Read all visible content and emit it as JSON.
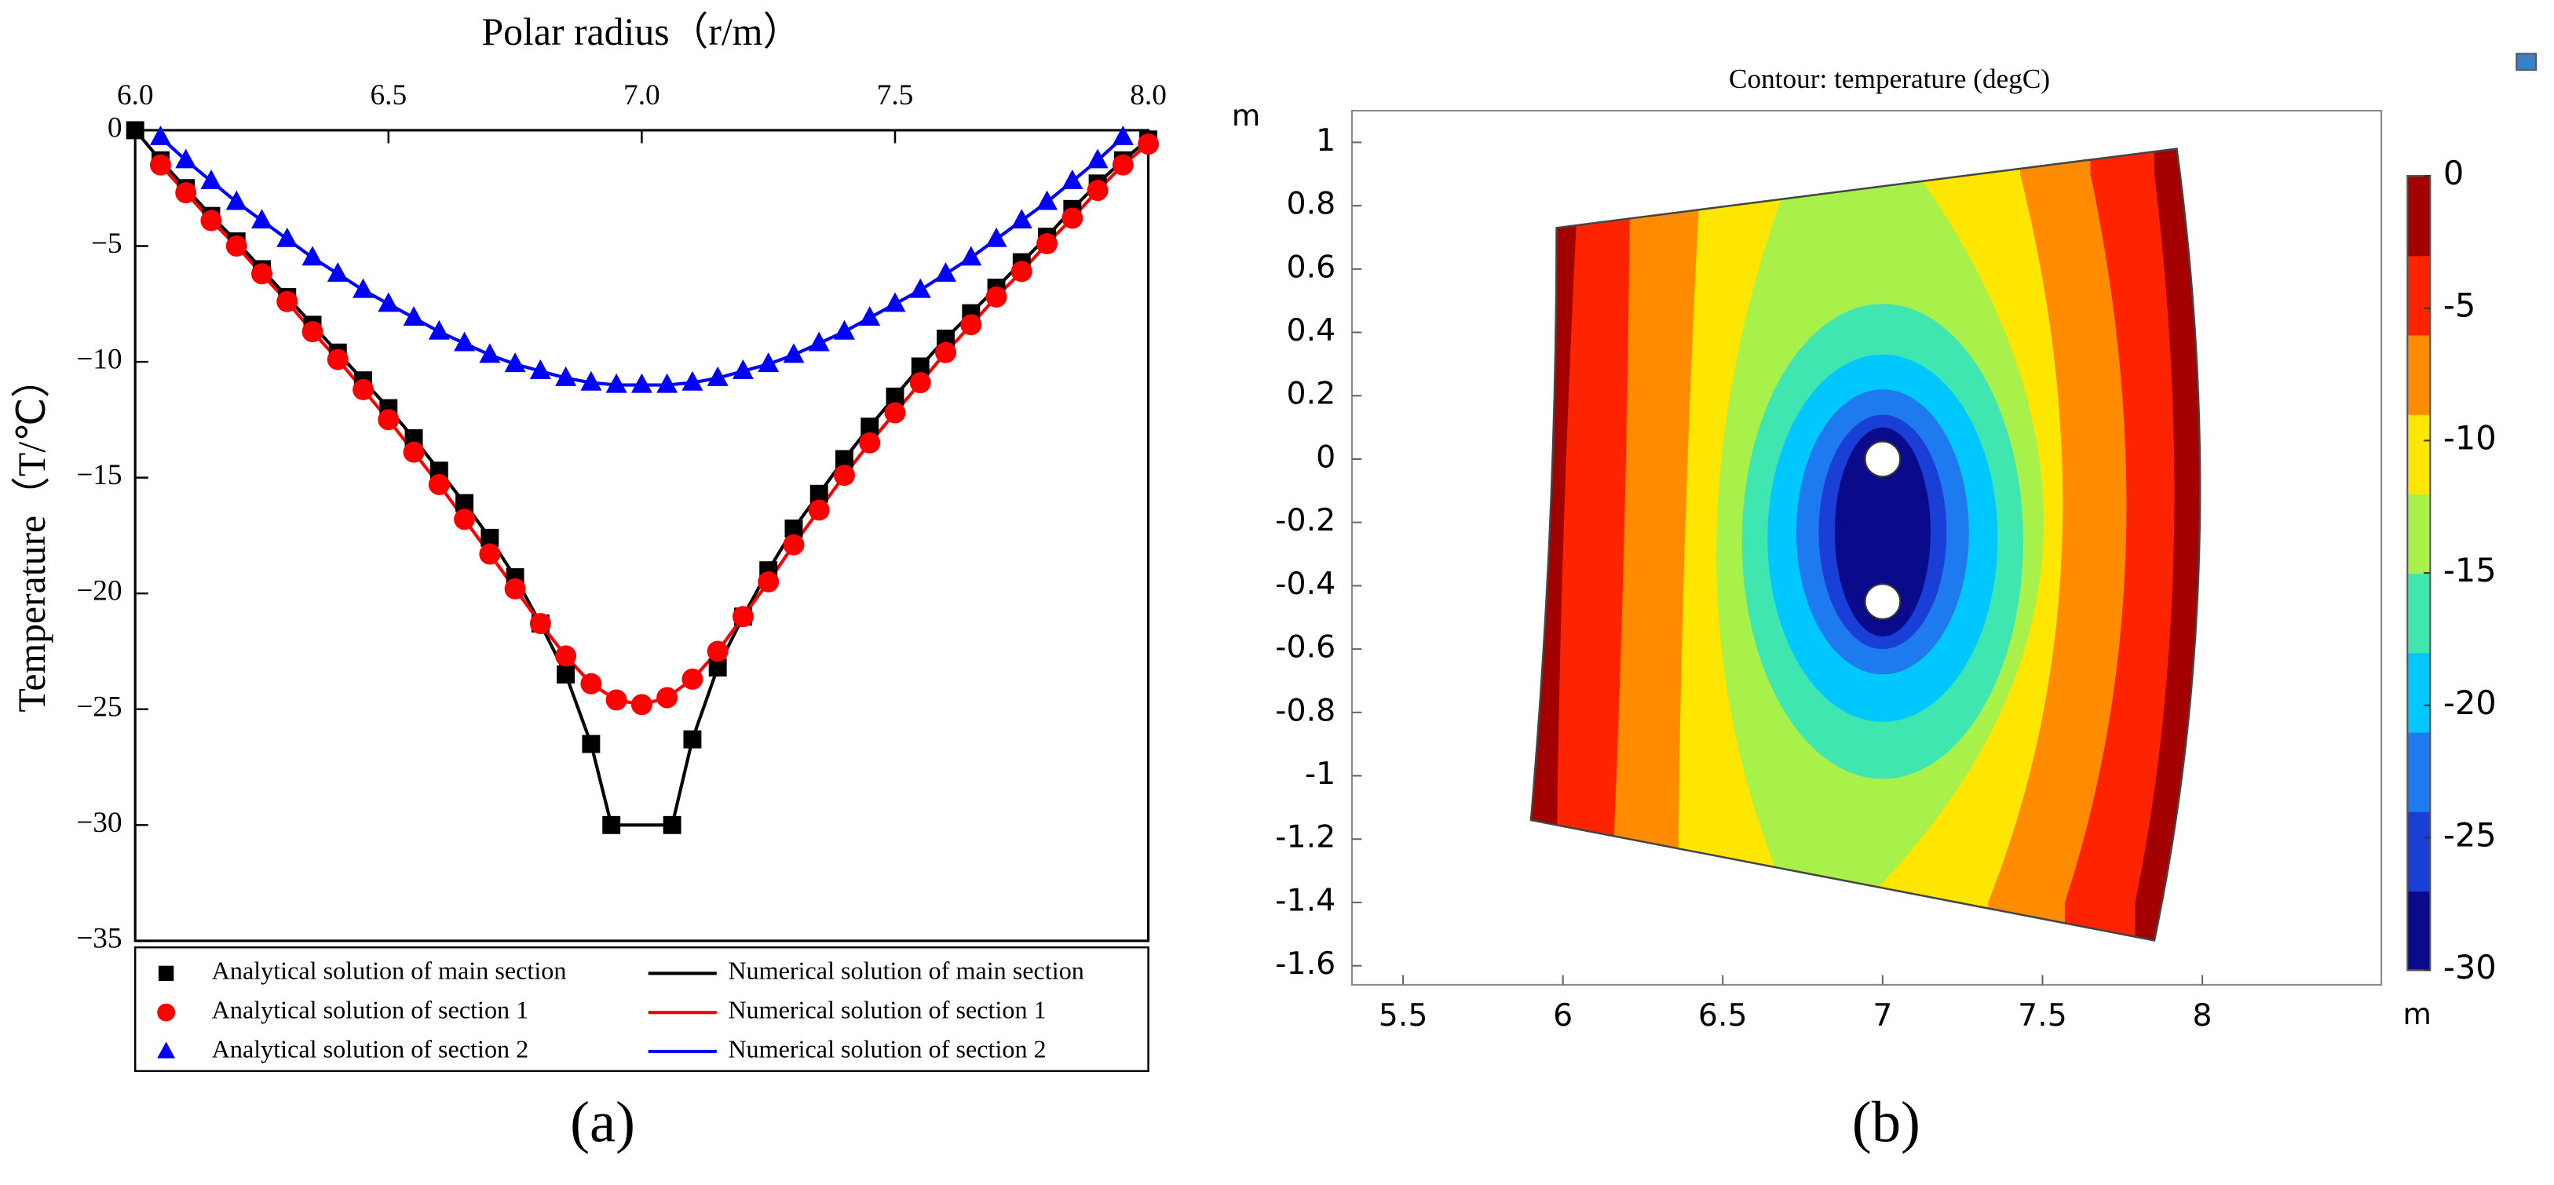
{
  "chart_data": [
    {
      "type": "line",
      "xlabel": "Polar radius（r/m）",
      "ylabel": "Temperature（T/℃）",
      "caption": "(a)",
      "xlim": [
        6,
        8
      ],
      "ylim": [
        -35,
        0
      ],
      "xticks": [
        {
          "value": 6,
          "label": "6.0"
        },
        {
          "value": 6.5,
          "label": "6.5"
        },
        {
          "value": 7,
          "label": "7.0"
        },
        {
          "value": 7.5,
          "label": "7.5"
        },
        {
          "value": 8,
          "label": "8.0"
        }
      ],
      "yticks": [
        0,
        {
          "value": -5,
          "label": "−5"
        },
        {
          "value": -10,
          "label": "−10"
        },
        {
          "value": -15,
          "label": "−15"
        },
        {
          "value": -20,
          "label": "−20"
        },
        {
          "value": -25,
          "label": "−25"
        },
        {
          "value": -30,
          "label": "−30"
        },
        {
          "value": -35,
          "label": "−35"
        }
      ],
      "legend": "bottom",
      "series": [
        {
          "name": "Analytical solution of main section",
          "color": "#000000",
          "marker": "square",
          "x": [
            6,
            6.05,
            6.1,
            6.15,
            6.2,
            6.25,
            6.3,
            6.35,
            6.4,
            6.45,
            6.5,
            6.55,
            6.6,
            6.65,
            6.7,
            6.75,
            6.8,
            6.85,
            6.9,
            6.94,
            7.06,
            7.1,
            7.15,
            7.2,
            7.25,
            7.3,
            7.35,
            7.4,
            7.45,
            7.5,
            7.55,
            7.6,
            7.65,
            7.7,
            7.75,
            7.8,
            7.85,
            7.9,
            7.95,
            8
          ],
          "values": [
            0,
            -1.3,
            -2.5,
            -3.7,
            -4.8,
            -6.0,
            -7.2,
            -8.4,
            -9.6,
            -10.8,
            -12.0,
            -13.3,
            -14.7,
            -16.1,
            -17.6,
            -19.3,
            -21.3,
            -23.5,
            -26.5,
            -30,
            -30,
            -26.3,
            -23.2,
            -21.0,
            -19.0,
            -17.2,
            -15.7,
            -14.2,
            -12.8,
            -11.5,
            -10.2,
            -9.0,
            -7.9,
            -6.8,
            -5.7,
            -4.6,
            -3.4,
            -2.3,
            -1.3,
            -0.4
          ]
        },
        {
          "name": "Numerical solution of main section",
          "color": "#000000",
          "marker": null,
          "x": [
            6,
            6.05,
            6.1,
            6.15,
            6.2,
            6.25,
            6.3,
            6.35,
            6.4,
            6.45,
            6.5,
            6.55,
            6.6,
            6.65,
            6.7,
            6.75,
            6.8,
            6.85,
            6.9,
            6.94,
            7.06,
            7.1,
            7.15,
            7.2,
            7.25,
            7.3,
            7.35,
            7.4,
            7.45,
            7.5,
            7.55,
            7.6,
            7.65,
            7.7,
            7.75,
            7.8,
            7.85,
            7.9,
            7.95,
            8
          ],
          "values": [
            0,
            -1.3,
            -2.5,
            -3.7,
            -4.8,
            -6.0,
            -7.2,
            -8.4,
            -9.6,
            -10.8,
            -12.0,
            -13.3,
            -14.7,
            -16.1,
            -17.6,
            -19.3,
            -21.3,
            -23.5,
            -26.5,
            -30,
            -30,
            -26.3,
            -23.2,
            -21.0,
            -19.0,
            -17.2,
            -15.7,
            -14.2,
            -12.8,
            -11.5,
            -10.2,
            -9.0,
            -7.9,
            -6.8,
            -5.7,
            -4.6,
            -3.4,
            -2.3,
            -1.3,
            -0.4
          ]
        },
        {
          "name": "Analytical solution of section 1",
          "color": "#ff0000",
          "marker": "circle",
          "x": [
            6.05,
            6.1,
            6.15,
            6.2,
            6.25,
            6.3,
            6.35,
            6.4,
            6.45,
            6.5,
            6.55,
            6.6,
            6.65,
            6.7,
            6.75,
            6.8,
            6.85,
            6.9,
            6.95,
            7,
            7.05,
            7.1,
            7.15,
            7.2,
            7.25,
            7.3,
            7.35,
            7.4,
            7.45,
            7.5,
            7.55,
            7.6,
            7.65,
            7.7,
            7.75,
            7.8,
            7.85,
            7.9,
            7.95,
            8
          ],
          "values": [
            -1.5,
            -2.7,
            -3.9,
            -5.0,
            -6.2,
            -7.4,
            -8.7,
            -9.9,
            -11.2,
            -12.5,
            -13.9,
            -15.3,
            -16.8,
            -18.3,
            -19.8,
            -21.3,
            -22.7,
            -23.9,
            -24.6,
            -24.8,
            -24.5,
            -23.7,
            -22.5,
            -21.0,
            -19.5,
            -17.9,
            -16.4,
            -14.9,
            -13.5,
            -12.2,
            -10.9,
            -9.6,
            -8.4,
            -7.2,
            -6.1,
            -4.9,
            -3.8,
            -2.6,
            -1.5,
            -0.6
          ]
        },
        {
          "name": "Numerical solution of section 1",
          "color": "#ff0000",
          "marker": null,
          "x": [
            6.05,
            6.1,
            6.15,
            6.2,
            6.25,
            6.3,
            6.35,
            6.4,
            6.45,
            6.5,
            6.55,
            6.6,
            6.65,
            6.7,
            6.75,
            6.8,
            6.85,
            6.9,
            6.95,
            7,
            7.05,
            7.1,
            7.15,
            7.2,
            7.25,
            7.3,
            7.35,
            7.4,
            7.45,
            7.5,
            7.55,
            7.6,
            7.65,
            7.7,
            7.75,
            7.8,
            7.85,
            7.9,
            7.95,
            8
          ],
          "values": [
            -1.5,
            -2.7,
            -3.9,
            -5.0,
            -6.2,
            -7.4,
            -8.7,
            -9.9,
            -11.2,
            -12.5,
            -13.9,
            -15.3,
            -16.8,
            -18.3,
            -19.8,
            -21.3,
            -22.7,
            -23.9,
            -24.6,
            -24.8,
            -24.5,
            -23.7,
            -22.5,
            -21.0,
            -19.5,
            -17.9,
            -16.4,
            -14.9,
            -13.5,
            -12.2,
            -10.9,
            -9.6,
            -8.4,
            -7.2,
            -6.1,
            -4.9,
            -3.8,
            -2.6,
            -1.5,
            -0.6
          ]
        },
        {
          "name": "Analytical solution of section 2",
          "color": "#0000ff",
          "marker": "triangle",
          "x": [
            6.05,
            6.1,
            6.15,
            6.2,
            6.25,
            6.3,
            6.35,
            6.4,
            6.45,
            6.5,
            6.55,
            6.6,
            6.65,
            6.7,
            6.75,
            6.8,
            6.85,
            6.9,
            6.95,
            7,
            7.05,
            7.1,
            7.15,
            7.2,
            7.25,
            7.3,
            7.35,
            7.4,
            7.45,
            7.5,
            7.55,
            7.6,
            7.65,
            7.7,
            7.75,
            7.8,
            7.85,
            7.9,
            7.95
          ],
          "values": [
            -0.3,
            -1.3,
            -2.2,
            -3.1,
            -3.9,
            -4.7,
            -5.5,
            -6.2,
            -6.9,
            -7.5,
            -8.1,
            -8.7,
            -9.2,
            -9.7,
            -10.1,
            -10.4,
            -10.7,
            -10.9,
            -11.0,
            -11.0,
            -11.0,
            -10.9,
            -10.7,
            -10.4,
            -10.1,
            -9.7,
            -9.2,
            -8.7,
            -8.1,
            -7.5,
            -6.9,
            -6.2,
            -5.5,
            -4.7,
            -3.9,
            -3.1,
            -2.2,
            -1.3,
            -0.3
          ]
        },
        {
          "name": "Numerical solution of section 2",
          "color": "#0000ff",
          "marker": null,
          "x": [
            6.05,
            6.1,
            6.15,
            6.2,
            6.25,
            6.3,
            6.35,
            6.4,
            6.45,
            6.5,
            6.55,
            6.6,
            6.65,
            6.7,
            6.75,
            6.8,
            6.85,
            6.9,
            6.95,
            7,
            7.05,
            7.1,
            7.15,
            7.2,
            7.25,
            7.3,
            7.35,
            7.4,
            7.45,
            7.5,
            7.55,
            7.6,
            7.65,
            7.7,
            7.75,
            7.8,
            7.85,
            7.9,
            7.95
          ],
          "values": [
            -0.3,
            -1.3,
            -2.2,
            -3.1,
            -3.9,
            -4.7,
            -5.5,
            -6.2,
            -6.9,
            -7.5,
            -8.1,
            -8.7,
            -9.2,
            -9.7,
            -10.1,
            -10.4,
            -10.7,
            -10.9,
            -11.0,
            -11.0,
            -11.0,
            -10.9,
            -10.7,
            -10.4,
            -10.1,
            -9.7,
            -9.2,
            -8.7,
            -8.1,
            -7.5,
            -6.9,
            -6.2,
            -5.5,
            -4.7,
            -3.9,
            -3.1,
            -2.2,
            -1.3,
            -0.3
          ]
        }
      ]
    },
    {
      "type": "contour",
      "title": "Contour: temperature (degC)",
      "xlabel": "m",
      "ylabel": "m",
      "caption": "(b)",
      "xlim": [
        5.34,
        8.56
      ],
      "ylim": [
        -1.66,
        1.1
      ],
      "xticks": [
        5.5,
        6,
        6.5,
        7,
        7.5,
        8
      ],
      "yticks": [
        1,
        0.8,
        0.6,
        0.4,
        0.2,
        0,
        -0.2,
        -0.4,
        -0.6,
        -0.8,
        -1,
        -1.2,
        -1.4,
        -1.6
      ],
      "levels": [
        -30,
        -27,
        -24,
        -21,
        -18,
        -15,
        -12,
        -9,
        -6,
        -3,
        0
      ],
      "colors": [
        "#0a0a8c",
        "#1a3fd6",
        "#1e7bef",
        "#00c8ff",
        "#3fe6b0",
        "#a8f04a",
        "#ffe600",
        "#ff8c00",
        "#ff2400",
        "#a50000"
      ],
      "colorbar_lim": [
        -30,
        0
      ],
      "colorbar_ticks": [
        0,
        -5,
        -10,
        -15,
        -20,
        -25,
        -30
      ]
    }
  ]
}
